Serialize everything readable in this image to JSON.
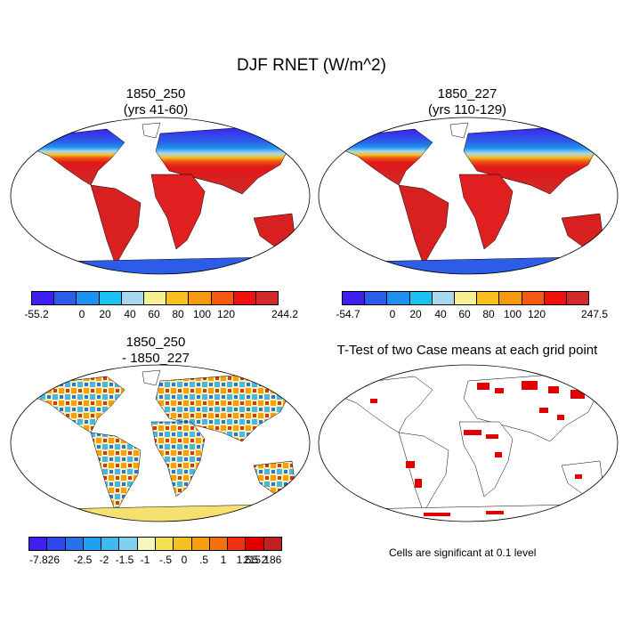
{
  "title": "DJF RNET (W/m^2)",
  "panels": [
    {
      "name": "1850_250",
      "line1": "1850_250",
      "line2": "(yrs 41-60)"
    },
    {
      "name": "1850_227",
      "line1": "1850_227",
      "line2": "(yrs 110-129)"
    },
    {
      "name": "diff",
      "line1": "1850_250",
      "line2": "- 1850_227"
    },
    {
      "name": "ttest",
      "line1": "T-Test of two Case means at each grid point",
      "line2": ""
    }
  ],
  "colorbars": [
    {
      "name": "case1",
      "colors": [
        "#3d1ff0",
        "#2d5de8",
        "#1e90f0",
        "#19c2f0",
        "#a8d8f0",
        "#f5f090",
        "#f5c020",
        "#f59a10",
        "#f55a10",
        "#f01010",
        "#d02a2a"
      ],
      "labels": [
        "-55.2",
        "0",
        "20",
        "40",
        "60",
        "80",
        "100",
        "120",
        "244.2"
      ]
    },
    {
      "name": "case2",
      "colors": [
        "#3d1ff0",
        "#2d5de8",
        "#1e90f0",
        "#19c2f0",
        "#a8d8f0",
        "#f5f090",
        "#f5c020",
        "#f59a10",
        "#f55a10",
        "#f01010",
        "#d02a2a"
      ],
      "labels": [
        "-54.7",
        "0",
        "20",
        "40",
        "60",
        "80",
        "100",
        "120",
        "247.5"
      ]
    },
    {
      "name": "diff",
      "colors": [
        "#4020f0",
        "#2e48f0",
        "#2a70e8",
        "#20a0f0",
        "#40b8f0",
        "#80d0f0",
        "#f5f5c0",
        "#f5e050",
        "#f5c020",
        "#f5a010",
        "#f57010",
        "#f03010",
        "#e00000",
        "#c02020"
      ],
      "labels": [
        "-7.826",
        "-2.5",
        "-2",
        "-1.5",
        "-1",
        "-.5",
        "0",
        ".5",
        "1",
        "1.5",
        "2",
        "2.5",
        "15.186"
      ]
    }
  ],
  "note": "Cells are significant at 0.1 level",
  "map_colors": {
    "cold_high_lat": "#3040e0",
    "mid_lat": "#2080f0",
    "subtropic": "#f5c020",
    "tropic": "#e01010",
    "antarctica": "#2d5de8",
    "significant": "#e00000"
  }
}
